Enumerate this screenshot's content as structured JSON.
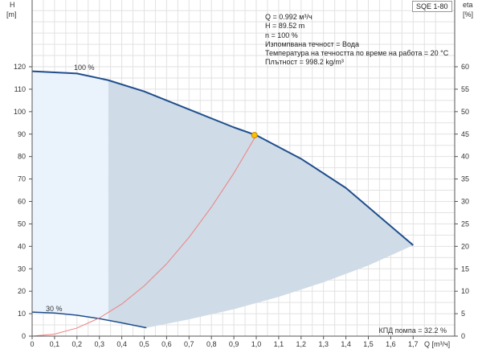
{
  "chart_data": {
    "type": "line",
    "title": "SQE 1-80",
    "xlabel": "Q [m³/ч]",
    "ylabel_left": [
      "H",
      "[m]"
    ],
    "ylabel_right": [
      "eta",
      "[%]"
    ],
    "xlim": [
      0,
      1.7
    ],
    "ylim_left": [
      0,
      120
    ],
    "ylim_right": [
      0,
      60
    ],
    "xticks": [
      "0",
      "0,1",
      "0,2",
      "0,3",
      "0,4",
      "0,5",
      "0,6",
      "0,7",
      "0,8",
      "0,9",
      "1,0",
      "1,1",
      "1,2",
      "1,3",
      "1,4",
      "1,5",
      "1,6",
      "1,7"
    ],
    "yticks_left": [
      "0",
      "10",
      "20",
      "30",
      "40",
      "50",
      "60",
      "70",
      "80",
      "90",
      "100",
      "110",
      "120"
    ],
    "yticks_right": [
      "0",
      "5",
      "10",
      "15",
      "20",
      "25",
      "30",
      "35",
      "40",
      "45",
      "50",
      "55",
      "60"
    ],
    "series": [
      {
        "name": "100 %",
        "x": [
          0,
          0.2,
          0.34,
          0.5,
          0.7,
          0.9,
          1.0,
          1.2,
          1.4,
          1.6,
          1.7
        ],
        "y": [
          118,
          117,
          114,
          109,
          101,
          93,
          89.5,
          79,
          66,
          49,
          40.5
        ]
      },
      {
        "name": "30 %",
        "x": [
          0,
          0.1,
          0.2,
          0.3,
          0.4,
          0.51
        ],
        "y": [
          10.7,
          10.3,
          9.3,
          7.8,
          5.9,
          3.7
        ]
      },
      {
        "name": "system",
        "x": [
          0,
          0.1,
          0.2,
          0.3,
          0.4,
          0.5,
          0.6,
          0.7,
          0.8,
          0.9,
          1.0
        ],
        "y": [
          0,
          0.9,
          3.6,
          8.1,
          14.3,
          22.4,
          32.2,
          44,
          57.5,
          72.6,
          89.5
        ]
      },
      {
        "name": "range-bottom",
        "x": [
          0.51,
          0.7,
          0.9,
          1.1,
          1.3,
          1.5,
          1.7
        ],
        "y": [
          3.7,
          7.5,
          12,
          17.5,
          24,
          31.5,
          40.5
        ]
      }
    ],
    "duty_point": {
      "x": 0.992,
      "y": 89.52
    },
    "split_q": 0.34,
    "colors": {
      "curve": "#1f4e8c",
      "system": "#f08080",
      "light": "#eaf3fc",
      "dark": "#cfdbe6",
      "grid": "#e2e2e2",
      "point": "#f5c400"
    }
  },
  "info": [
    "Q = 0.992 м³/ч",
    "H = 89.52 m",
    "n = 100 %",
    "Изпомпвана течност = Вода",
    "Температура на течността по време на работа = 20 °C",
    "Плътност = 998.2 kg/m³"
  ],
  "efficiency": "КПД помпа = 32.2 %"
}
